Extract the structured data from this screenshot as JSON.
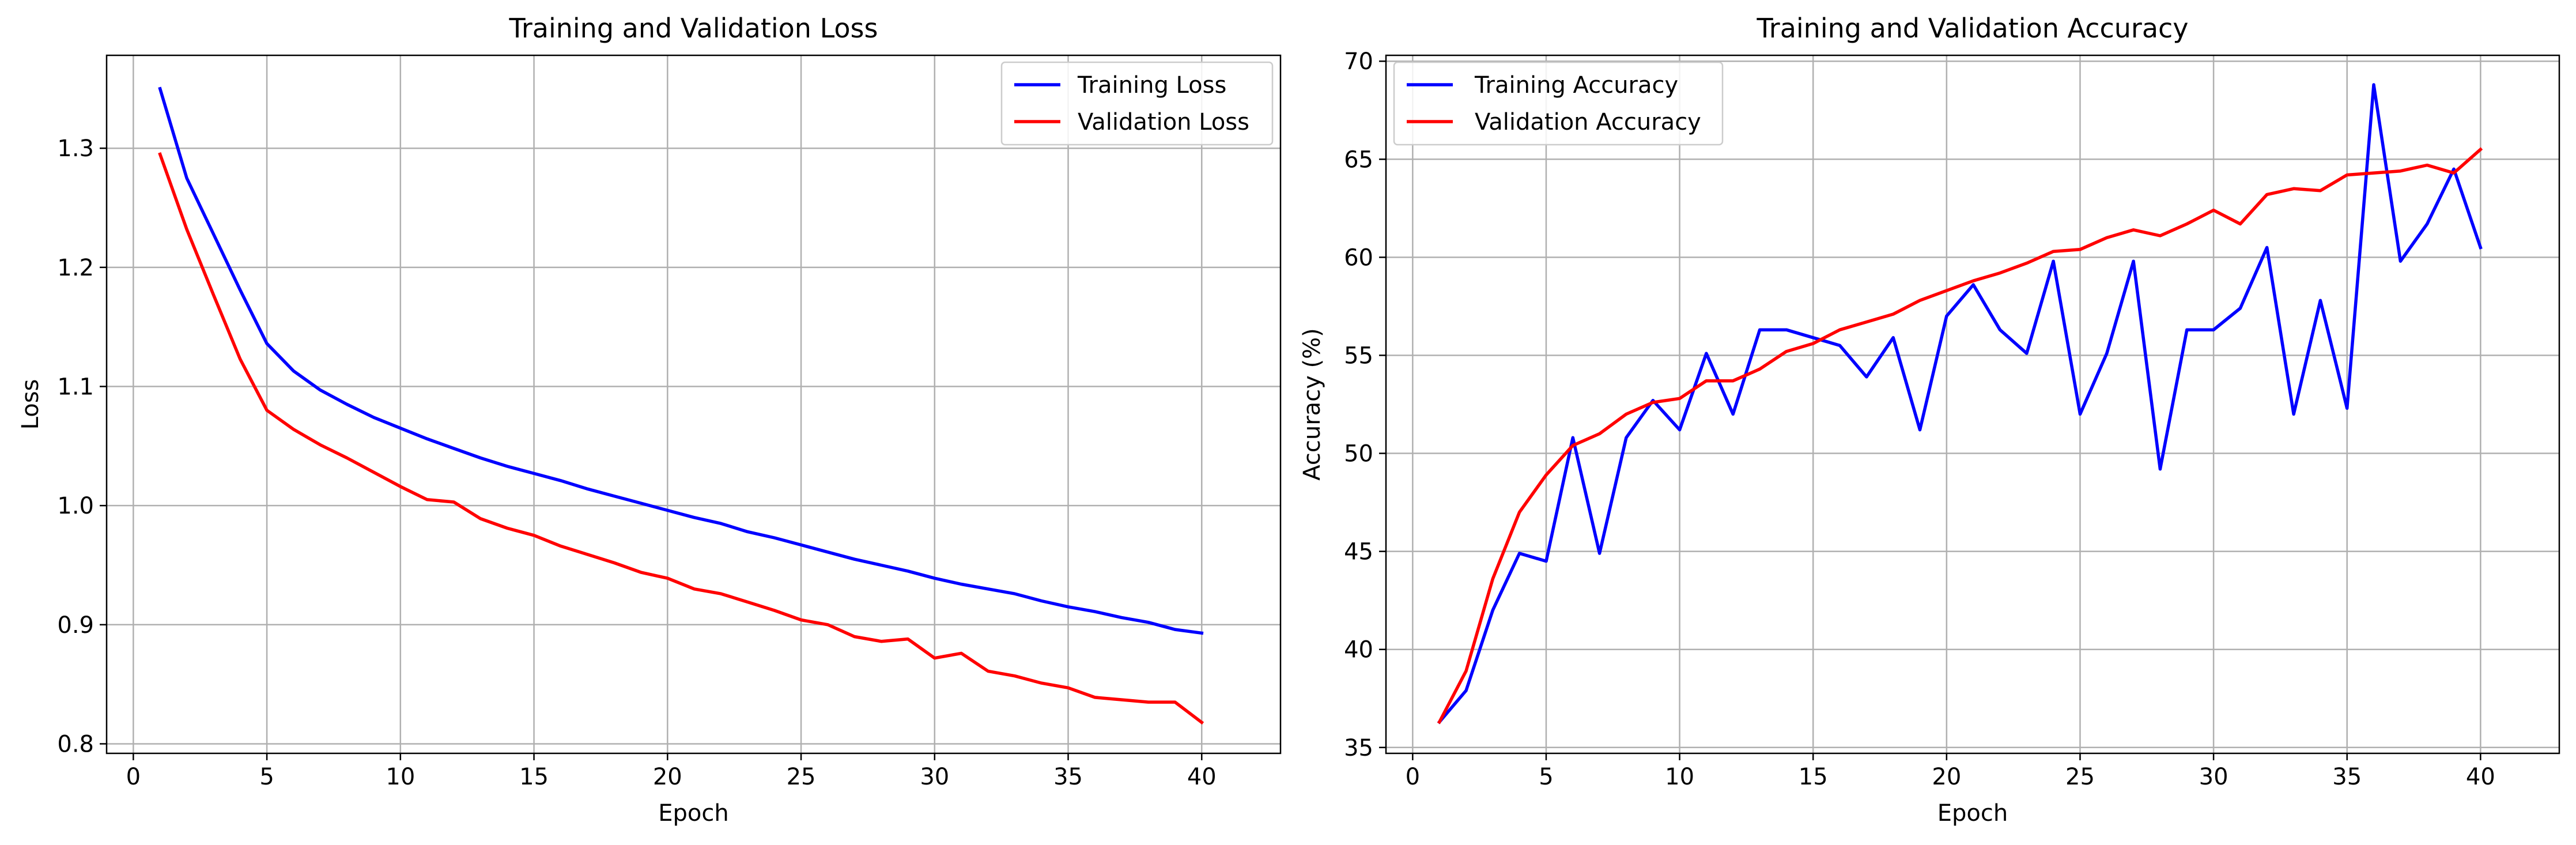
{
  "chart_data": [
    {
      "type": "line",
      "title": "Training and Validation Loss",
      "xlabel": "Epoch",
      "ylabel": "Loss",
      "xlim": [
        -1,
        42.95
      ],
      "ylim": [
        0.792,
        1.378
      ],
      "grid": true,
      "legend_position": "top-right",
      "x_ticks": [
        0,
        5,
        10,
        15,
        20,
        25,
        30,
        35,
        40
      ],
      "y_ticks": [
        0.8,
        0.9,
        1.0,
        1.1,
        1.2,
        1.3
      ],
      "y_tick_labels": [
        "0.8",
        "0.9",
        "1.0",
        "1.1",
        "1.2",
        "1.3"
      ],
      "x": [
        1,
        2,
        3,
        4,
        5,
        6,
        7,
        8,
        9,
        10,
        11,
        12,
        13,
        14,
        15,
        16,
        17,
        18,
        19,
        20,
        21,
        22,
        23,
        24,
        25,
        26,
        27,
        28,
        29,
        30,
        31,
        32,
        33,
        34,
        35,
        36,
        37,
        38,
        39,
        40
      ],
      "series": [
        {
          "name": "Training Loss",
          "color": "#0000ff",
          "values": [
            1.35,
            1.275,
            1.228,
            1.181,
            1.136,
            1.113,
            1.097,
            1.085,
            1.074,
            1.065,
            1.056,
            1.048,
            1.04,
            1.033,
            1.027,
            1.021,
            1.014,
            1.008,
            1.002,
            0.996,
            0.99,
            0.985,
            0.978,
            0.973,
            0.967,
            0.961,
            0.955,
            0.95,
            0.945,
            0.939,
            0.934,
            0.93,
            0.926,
            0.92,
            0.915,
            0.911,
            0.906,
            0.902,
            0.896,
            0.893
          ]
        },
        {
          "name": "Validation Loss",
          "color": "#ff0000",
          "values": [
            1.295,
            1.232,
            1.177,
            1.123,
            1.08,
            1.064,
            1.051,
            1.04,
            1.028,
            1.016,
            1.005,
            1.003,
            0.989,
            0.981,
            0.975,
            0.966,
            0.959,
            0.952,
            0.944,
            0.939,
            0.93,
            0.926,
            0.919,
            0.912,
            0.904,
            0.9,
            0.89,
            0.886,
            0.888,
            0.872,
            0.876,
            0.861,
            0.857,
            0.851,
            0.847,
            0.839,
            0.837,
            0.835,
            0.835,
            0.818
          ]
        }
      ]
    },
    {
      "type": "line",
      "title": "Training and Validation Accuracy",
      "xlabel": "Epoch",
      "ylabel": "Accuracy (%)",
      "xlim": [
        -1,
        42.95
      ],
      "ylim": [
        34.7,
        70.3
      ],
      "grid": true,
      "legend_position": "top-left",
      "x_ticks": [
        0,
        5,
        10,
        15,
        20,
        25,
        30,
        35,
        40
      ],
      "y_ticks": [
        35,
        40,
        45,
        50,
        55,
        60,
        65,
        70
      ],
      "y_tick_labels": [
        "35",
        "40",
        "45",
        "50",
        "55",
        "60",
        "65",
        "70"
      ],
      "x": [
        1,
        2,
        3,
        4,
        5,
        6,
        7,
        8,
        9,
        10,
        11,
        12,
        13,
        14,
        15,
        16,
        17,
        18,
        19,
        20,
        21,
        22,
        23,
        24,
        25,
        26,
        27,
        28,
        29,
        30,
        31,
        32,
        33,
        34,
        35,
        36,
        37,
        38,
        39,
        40
      ],
      "series": [
        {
          "name": "Training Accuracy",
          "color": "#0000ff",
          "values": [
            36.3,
            37.9,
            42.0,
            44.9,
            44.5,
            50.8,
            44.9,
            50.8,
            52.7,
            51.2,
            55.1,
            52.0,
            56.3,
            56.3,
            55.9,
            55.5,
            53.9,
            55.9,
            51.2,
            57.0,
            58.6,
            56.3,
            55.1,
            59.8,
            52.0,
            55.1,
            59.8,
            49.2,
            56.3,
            56.3,
            57.4,
            60.5,
            52.0,
            57.8,
            52.3,
            68.8,
            59.8,
            61.7,
            64.5,
            60.5
          ]
        },
        {
          "name": "Validation Accuracy",
          "color": "#ff0000",
          "values": [
            36.3,
            38.9,
            43.6,
            47.0,
            48.9,
            50.4,
            51.0,
            52.0,
            52.6,
            52.8,
            53.7,
            53.7,
            54.3,
            55.2,
            55.6,
            56.3,
            56.7,
            57.1,
            57.8,
            58.3,
            58.8,
            59.2,
            59.7,
            60.3,
            60.4,
            61.0,
            61.4,
            61.1,
            61.7,
            62.4,
            61.7,
            63.2,
            63.5,
            63.4,
            64.2,
            64.3,
            64.4,
            64.7,
            64.3,
            65.5
          ]
        }
      ]
    }
  ]
}
